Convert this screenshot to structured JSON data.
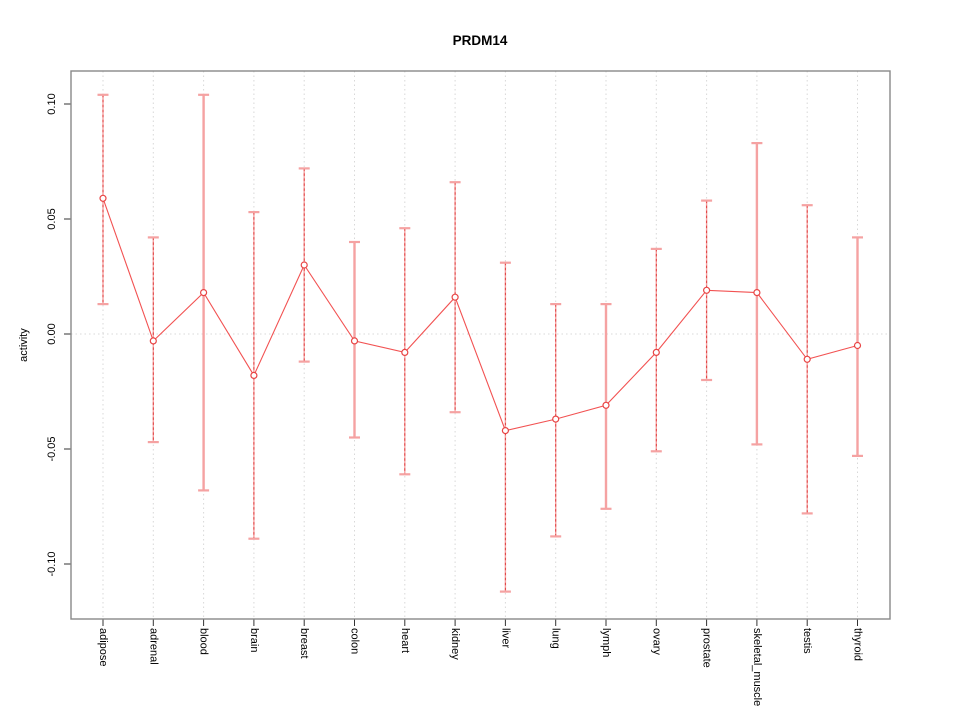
{
  "title": "PRDM14",
  "chart_data": {
    "type": "scatter",
    "title": "PRDM14",
    "xlabel": "",
    "ylabel": "activity",
    "categories": [
      "adipose",
      "adrenal",
      "blood",
      "brain",
      "breast",
      "colon",
      "heart",
      "kidney",
      "liver",
      "lung",
      "lymph",
      "ovary",
      "prostate",
      "skeletal_muscle",
      "testis",
      "thyroid"
    ],
    "series": [
      {
        "name": "activity",
        "values": [
          0.059,
          -0.003,
          0.018,
          -0.018,
          0.03,
          -0.003,
          -0.008,
          0.016,
          -0.042,
          -0.037,
          -0.031,
          -0.008,
          0.019,
          0.018,
          -0.011,
          -0.005
        ],
        "err_high": [
          0.104,
          0.042,
          0.104,
          0.053,
          0.072,
          0.04,
          0.046,
          0.066,
          0.031,
          0.013,
          0.013,
          0.037,
          0.058,
          0.083,
          0.056,
          0.042
        ],
        "err_low": [
          0.013,
          -0.047,
          -0.068,
          -0.089,
          -0.012,
          -0.045,
          -0.061,
          -0.034,
          -0.112,
          -0.088,
          -0.076,
          -0.051,
          -0.02,
          -0.048,
          -0.078,
          -0.053
        ]
      }
    ],
    "bar_styles": [
      "dashed",
      "dashed",
      "solid",
      "dashed",
      "dashed",
      "solid",
      "dashed",
      "dashed",
      "dashed",
      "dashed",
      "solid",
      "dashed",
      "dashed",
      "solid",
      "dashed",
      "solid"
    ],
    "yticks": [
      "0.10",
      "0.05",
      "0.00",
      "-0.05",
      "-0.10"
    ],
    "ytick_values": [
      0.1,
      0.05,
      0.0,
      -0.05,
      -0.1
    ],
    "ylim": [
      -0.115,
      0.112
    ],
    "grid": "dotted vertical line per category; dotted horizontal line at zero",
    "legend": "none"
  },
  "colors": {
    "point_red": "#e84545",
    "line_red": "#f25252",
    "bar_pink": "#f5a2a2",
    "dash_red": "#e04040",
    "grid_gray": "#d8d8d8",
    "border_gray": "#888888",
    "tick_black": "#333333"
  }
}
